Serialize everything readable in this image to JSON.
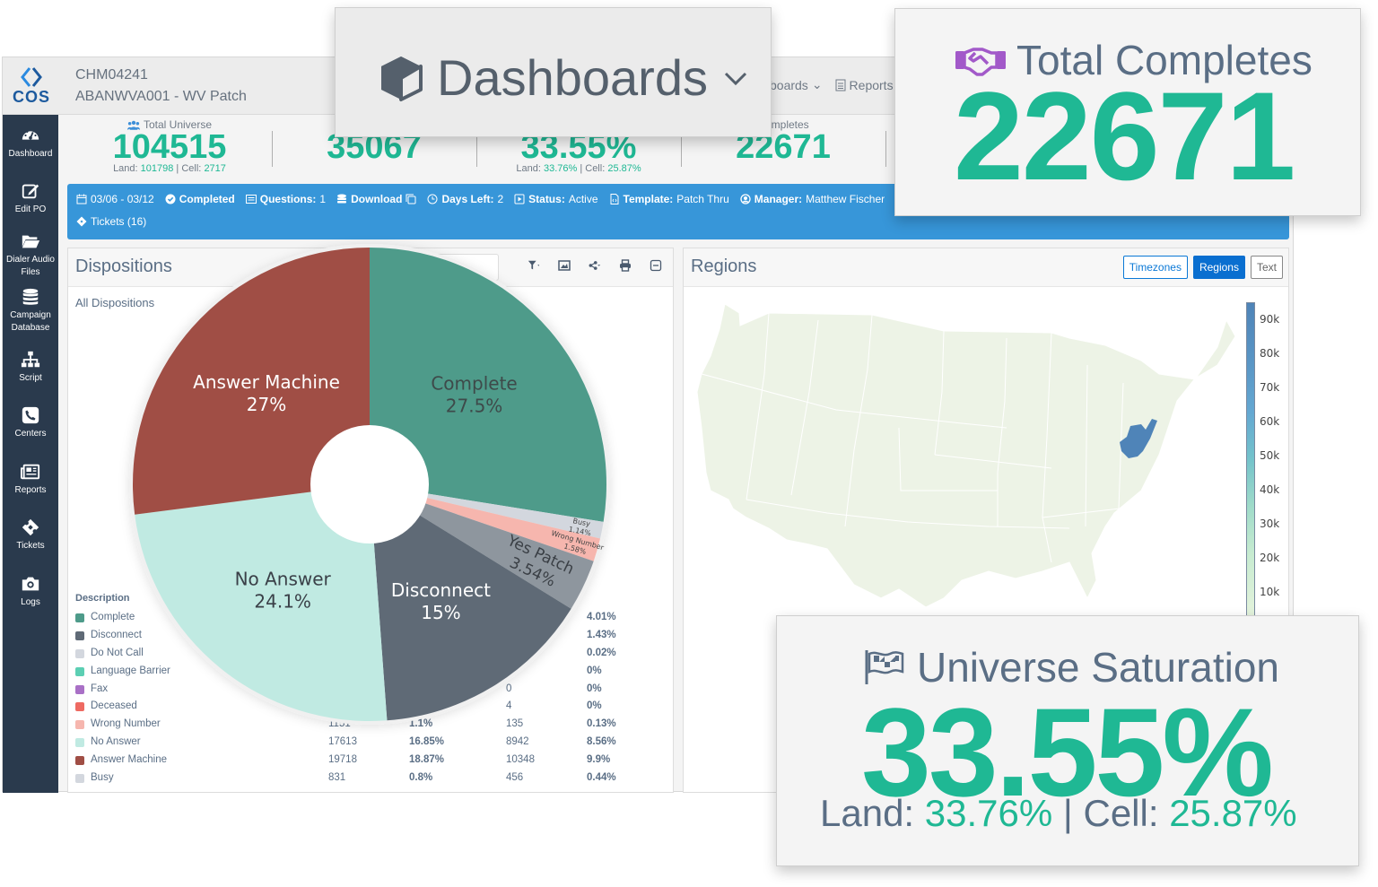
{
  "app": {
    "logo_text": "COS",
    "project_id": "CHM04241",
    "project_name": "ABANWVA001 - WV Patch",
    "topnav": {
      "dashboards_partial": "boards",
      "reports": "Reports"
    }
  },
  "sidebar": {
    "items": [
      {
        "label": "Dashboard",
        "icon": "dashboard-gauge-icon"
      },
      {
        "label": "Edit PO",
        "icon": "edit-icon"
      },
      {
        "label": "Dialer Audio Files",
        "icon": "folder-icon"
      },
      {
        "label": "Campaign Database",
        "icon": "database-icon"
      },
      {
        "label": "Script",
        "icon": "sitemap-icon"
      },
      {
        "label": "Centers",
        "icon": "phone-icon"
      },
      {
        "label": "Reports",
        "icon": "newspaper-icon"
      },
      {
        "label": "Tickets",
        "icon": "ticket-icon"
      },
      {
        "label": "Logs",
        "icon": "camera-icon"
      }
    ]
  },
  "stats": {
    "total_universe": {
      "label": "Total Universe",
      "value": "104515",
      "land_label": "Land:",
      "land": "101798",
      "cell_label": "Cell:",
      "cell": "2717"
    },
    "second": {
      "value_partial": "35067"
    },
    "saturation": {
      "value_partial": "33.55%",
      "land_label": "Land:",
      "land": "33.76%",
      "cell_label": "Cell:",
      "cell": "25.87%"
    },
    "completes": {
      "label": "Completes",
      "value": "22671"
    }
  },
  "infobar": {
    "dates": "03/06 - 03/12",
    "completed": "Completed",
    "questions_label": "Questions:",
    "questions": "1",
    "download": "Download",
    "days_left_label": "Days Left:",
    "days_left": "2",
    "status_label": "Status:",
    "status": "Active",
    "template_label": "Template:",
    "template": "Patch Thru",
    "manager_label": "Manager:",
    "manager": "Matthew Fischer",
    "tickets": "Tickets (16)"
  },
  "dispositions": {
    "title": "Dispositions",
    "subtitle": "All Dispositions",
    "legend_header": "Description",
    "rows": [
      {
        "name": "Complete",
        "color": "#4e9b8a",
        "c1": "",
        "c2": "",
        "c3": "",
        "c4": "4.01%"
      },
      {
        "name": "Disconnect",
        "color": "#5f6a76",
        "c1": "",
        "c2": "",
        "c3": "",
        "c4": "1.43%"
      },
      {
        "name": "Do Not Call",
        "color": "#d3d7de",
        "c1": "",
        "c2": "",
        "c3": "",
        "c4": "0.02%"
      },
      {
        "name": "Language Barrier",
        "color": "#5ccfb3",
        "c1": "",
        "c2": "",
        "c3": "",
        "c4": "0%"
      },
      {
        "name": "Fax",
        "color": "#a970c6",
        "c1": "",
        "c2": "",
        "c3": "0",
        "c4": "0%"
      },
      {
        "name": "Deceased",
        "color": "#ee6a62",
        "c1": "",
        "c2": "",
        "c3": "4",
        "c4": "0%"
      },
      {
        "name": "Wrong Number",
        "color": "#f6b6ae",
        "c1": "1151",
        "c2": "1.1%",
        "c3": "135",
        "c4": "0.13%"
      },
      {
        "name": "No Answer",
        "color": "#c0eae2",
        "c1": "17613",
        "c2": "16.85%",
        "c3": "8942",
        "c4": "8.56%"
      },
      {
        "name": "Answer Machine",
        "color": "#a04e45",
        "c1": "19718",
        "c2": "18.87%",
        "c3": "10348",
        "c4": "9.9%"
      },
      {
        "name": "Busy",
        "color": "#d3d7de",
        "c1": "831",
        "c2": "0.8%",
        "c3": "456",
        "c4": "0.44%"
      }
    ]
  },
  "chart_data": {
    "type": "pie",
    "title": "Dispositions",
    "subtitle": "All Dispositions",
    "donut": true,
    "slices": [
      {
        "label": "Complete",
        "value": 27.5,
        "color": "#4e9b8a",
        "text_color": "#3e4a4a",
        "display": "27.5%"
      },
      {
        "label": "Busy",
        "value": 1.14,
        "color": "#d3d7de",
        "text_color": "#444",
        "display": "1.14%"
      },
      {
        "label": "Wrong Number",
        "value": 1.58,
        "color": "#f6b6ae",
        "text_color": "#444",
        "display": "1.58%"
      },
      {
        "label": "Yes Patch",
        "value": 3.54,
        "color": "#8e969e",
        "text_color": "#3a3f45",
        "display": "3.54%"
      },
      {
        "label": "Disconnect",
        "value": 15,
        "color": "#5f6a76",
        "text_color": "#ffffff",
        "display": "15%"
      },
      {
        "label": "No Answer",
        "value": 24.1,
        "color": "#c0eae2",
        "text_color": "#3a4048",
        "display": "24.1%"
      },
      {
        "label": "Answer Machine",
        "value": 27,
        "color": "#a04e45",
        "text_color": "#ffffff",
        "display": "27%"
      }
    ]
  },
  "regions": {
    "title": "Regions",
    "buttons": [
      "Timezones",
      "Regions",
      "Text"
    ],
    "active_button": "Regions",
    "highlighted_state": "West Virginia",
    "scale_labels": [
      "90k",
      "80k",
      "70k",
      "60k",
      "50k",
      "40k",
      "30k",
      "20k",
      "10k"
    ],
    "highlight_color": "#4f84b8",
    "base_color": "#edf3e6"
  },
  "overlay": {
    "dashboards_label": "Dashboards",
    "total_completes_label": "Total Completes",
    "total_completes_value": "22671",
    "universe_saturation_label": "Universe Saturation",
    "universe_saturation_value": "33.55%",
    "land_label": "Land:",
    "land_value": "33.76%",
    "cell_label": "Cell:",
    "cell_value": "25.87%"
  }
}
